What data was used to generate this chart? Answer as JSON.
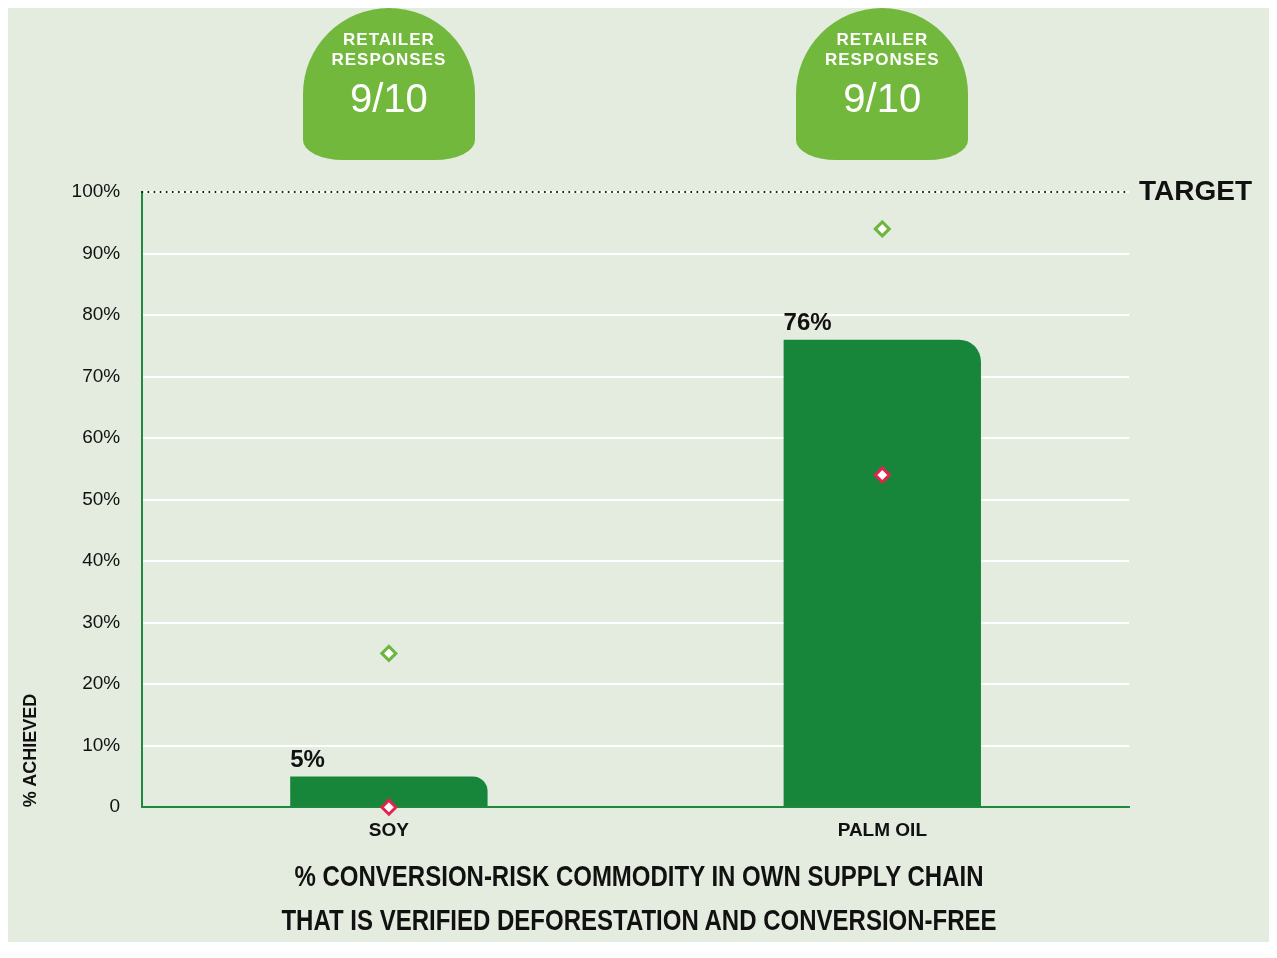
{
  "chart_data": {
    "type": "bar",
    "title": "% CONVERSION-RISK COMMODITY IN OWN SUPPLY CHAIN THAT IS VERIFIED DEFORESTATION AND CONVERSION-FREE",
    "ylabel": "% ACHIEVED",
    "annotations": [
      "RETAILER RESPONSES",
      "9/10",
      "RETAILER RESPONSES",
      "9/10"
    ],
    "categories": [
      "SOY",
      "PALM OIL"
    ],
    "series": [
      {
        "color": "#18863a",
        "values": [
          5,
          76
        ],
        "value_labels": [
          "5%",
          "76%"
        ]
      },
      {
        "type": "scatter",
        "color": "#6db63e",
        "x": [
          "SOY",
          "PALM OIL"
        ],
        "values": [
          25,
          94
        ]
      },
      {
        "type": "scatter",
        "color": "#e2244c",
        "x": [
          "SOY",
          "PALM OIL"
        ],
        "values": [
          0,
          54
        ]
      }
    ],
    "ylim": [
      0,
      100
    ],
    "yticks": [
      0,
      {
        "value": 10,
        "label": "10%"
      },
      {
        "value": 20,
        "label": "20%"
      },
      {
        "value": 30,
        "label": "30%"
      },
      {
        "value": 40,
        "label": "40%"
      },
      {
        "value": 50,
        "label": "50%"
      },
      {
        "value": 60,
        "label": "60%"
      },
      {
        "value": 70,
        "label": "70%"
      },
      {
        "value": 80,
        "label": "80%"
      },
      {
        "value": 90,
        "label": "90%"
      },
      {
        "value": 100,
        "label": "100%"
      }
    ],
    "ref_lines": [
      {
        "axis": "y",
        "value": 100,
        "label": "TARGET",
        "color": "#111111",
        "line_style": "dotted"
      }
    ],
    "grid": "y",
    "marker": "diamond",
    "legend": false
  }
}
